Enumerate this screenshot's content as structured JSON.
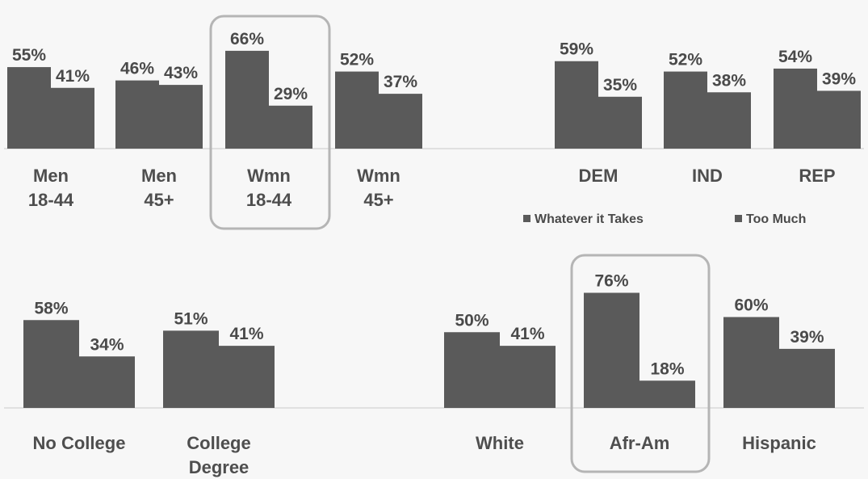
{
  "chart_data": [
    {
      "type": "bar",
      "categories": [
        [
          "Men",
          "18-44"
        ],
        [
          "Men",
          "45+"
        ],
        [
          "Wmn",
          "18-44"
        ],
        [
          "Wmn",
          "45+"
        ],
        [
          "DEM"
        ],
        [
          "IND"
        ],
        [
          "REP"
        ]
      ],
      "series": [
        {
          "name": "Whatever it Takes",
          "values": [
            55,
            46,
            66,
            52,
            59,
            52,
            54
          ],
          "labels": [
            "55%",
            "46%",
            "66%",
            "52%",
            "59%",
            "52%",
            "54%"
          ]
        },
        {
          "name": "Too Much",
          "values": [
            41,
            43,
            29,
            37,
            35,
            38,
            39
          ],
          "labels": [
            "41%",
            "43%",
            "29%",
            "37%",
            "35%",
            "38%",
            "39%"
          ]
        }
      ],
      "highlighted": [
        "Wmn 18-44"
      ],
      "legend": {
        "placement": "below-right",
        "items": [
          "Whatever it Takes",
          "Too Much"
        ]
      }
    },
    {
      "type": "bar",
      "categories": [
        [
          "No College"
        ],
        [
          "College",
          "Degree"
        ],
        [
          "White"
        ],
        [
          "Afr-Am"
        ],
        [
          "Hispanic"
        ]
      ],
      "series": [
        {
          "name": "Whatever it Takes",
          "values": [
            58,
            51,
            50,
            76,
            60
          ],
          "labels": [
            "58%",
            "51%",
            "50%",
            "76%",
            "60%"
          ]
        },
        {
          "name": "Too Much",
          "values": [
            34,
            41,
            41,
            18,
            39
          ],
          "labels": [
            "34%",
            "41%",
            "41%",
            "18%",
            "39%"
          ]
        }
      ],
      "highlighted": [
        "Afr-Am"
      ]
    }
  ],
  "colors": {
    "bar": "#5a5a5a",
    "highlight_box": "#b5b5b5",
    "baseline": "#c8c8c8"
  }
}
